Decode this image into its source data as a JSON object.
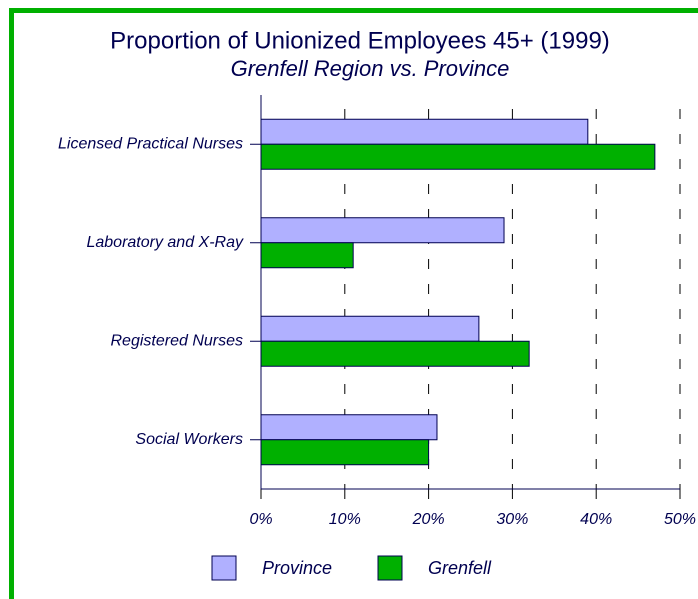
{
  "chart_data": {
    "type": "hbar",
    "title": "Proportion of Unionized Employees 45+ (1999)",
    "subtitle": "Grenfell Region vs. Province",
    "categories": [
      "Licensed Practical Nurses",
      "Laboratory and X-Ray",
      "Registered Nurses",
      "Social Workers"
    ],
    "series": [
      {
        "name": "Province",
        "color": "#b0b0ff",
        "values": [
          39,
          29,
          26,
          21
        ]
      },
      {
        "name": "Grenfell",
        "color": "#00b000",
        "values": [
          47,
          11,
          32,
          20
        ]
      }
    ],
    "xlim": [
      0,
      50
    ],
    "xticks": [
      {
        "value": 0,
        "label": "0%"
      },
      {
        "value": 10,
        "label": "10%"
      },
      {
        "value": 20,
        "label": "20%"
      },
      {
        "value": 30,
        "label": "30%"
      },
      {
        "value": 40,
        "label": "40%"
      },
      {
        "value": 50,
        "label": "50%"
      }
    ],
    "grid": true
  }
}
